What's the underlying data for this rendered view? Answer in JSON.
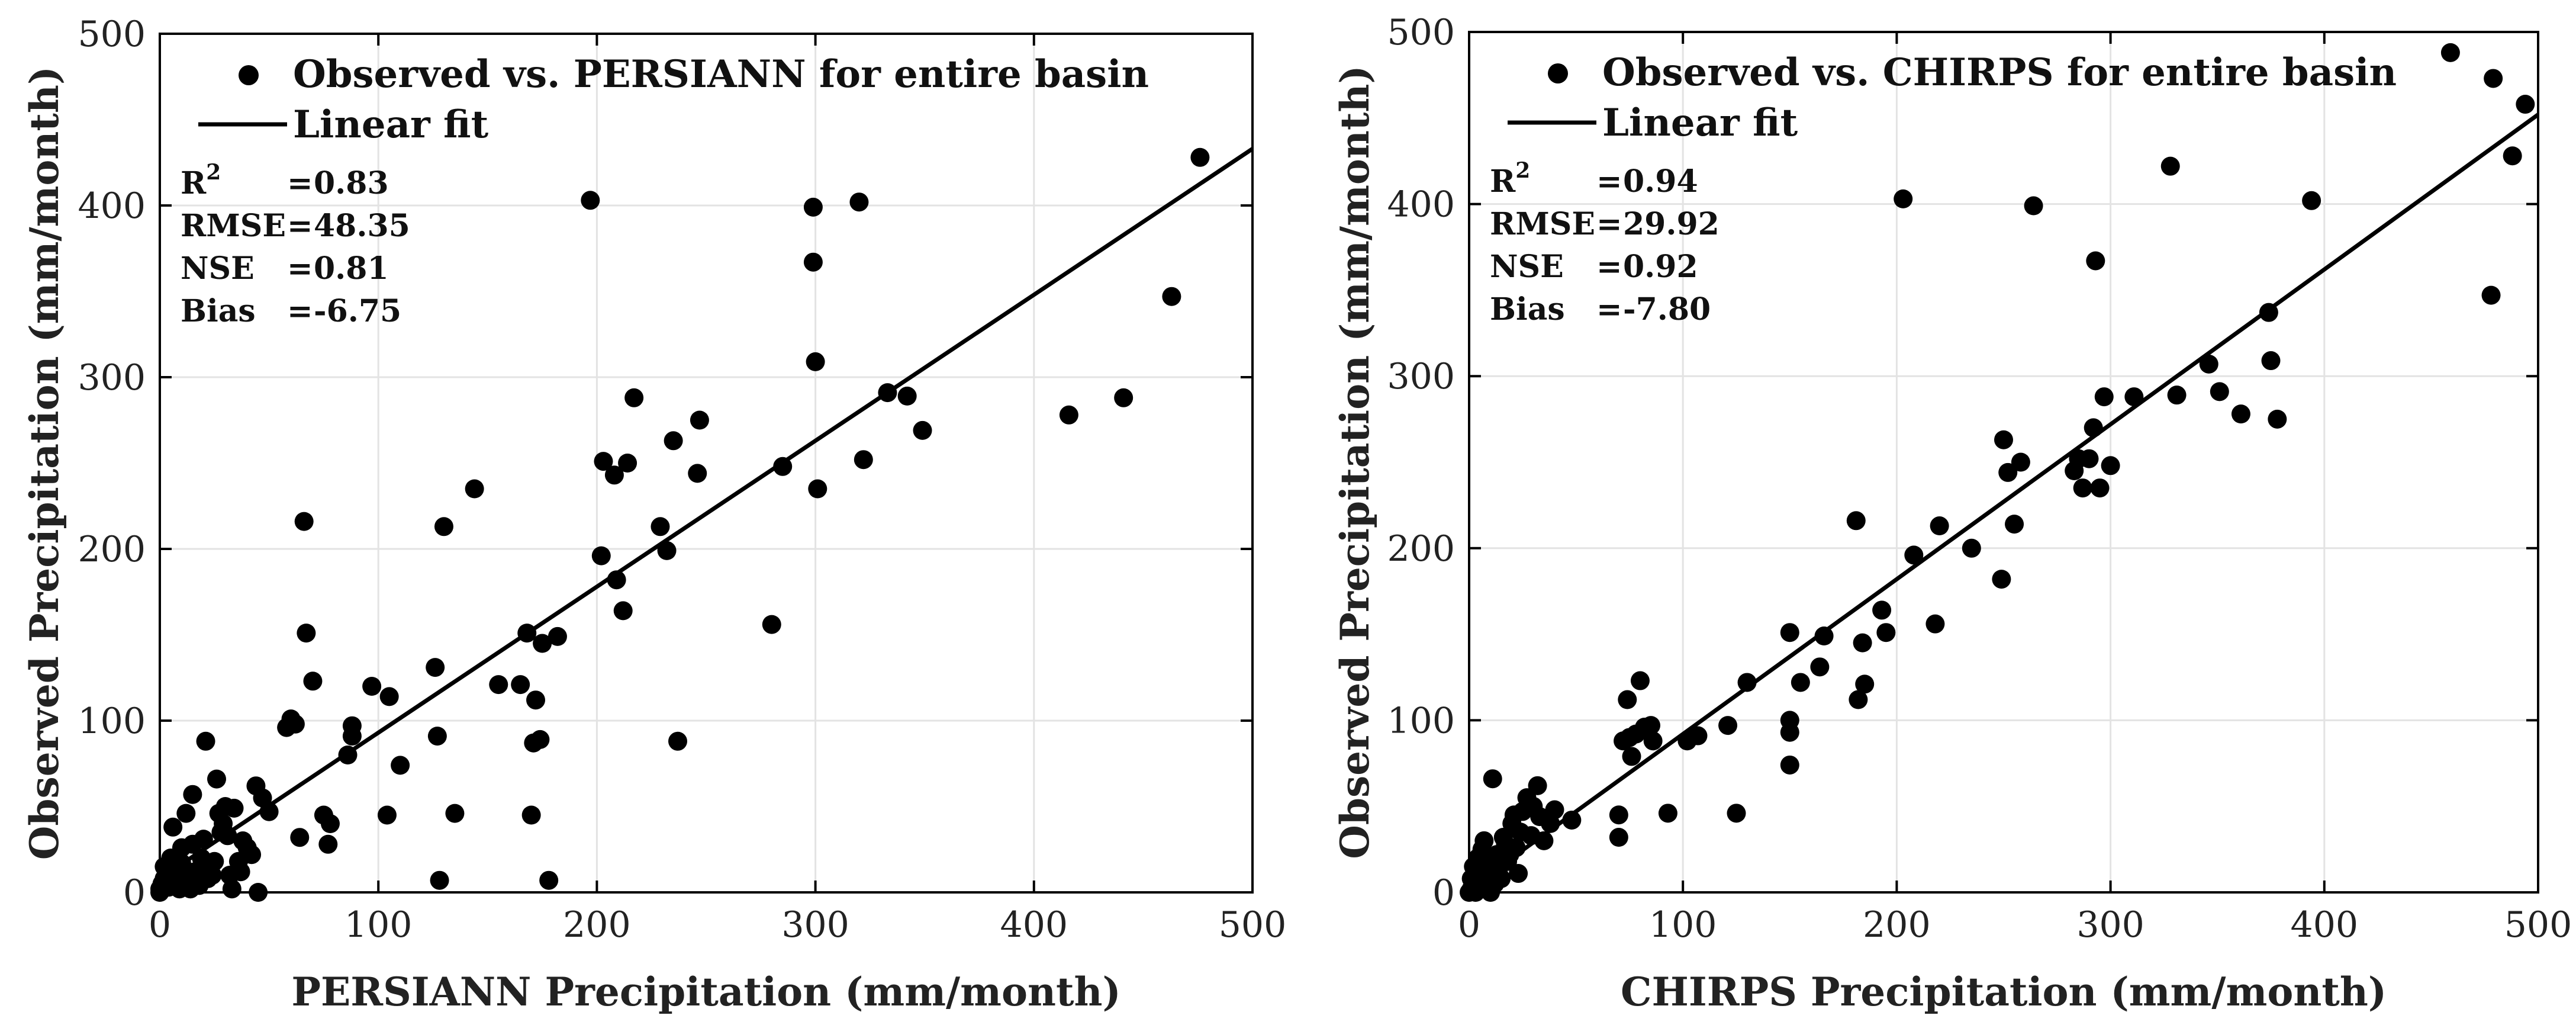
{
  "chart_data": [
    {
      "type": "scatter",
      "xlabel": "PERSIANN Precipitation (mm/month)",
      "ylabel": "Observed Precipitation (mm/month)",
      "xlim": [
        0,
        500
      ],
      "ylim": [
        0,
        500
      ],
      "xticks": [
        "0",
        "100",
        "200",
        "300",
        "400",
        "500"
      ],
      "yticks": [
        "0",
        "100",
        "200",
        "300",
        "400",
        "500"
      ],
      "grid": true,
      "legend": {
        "placement": "top-left",
        "entries": [
          "Observed vs. PERSIANN for entire basin",
          "Linear fit"
        ]
      },
      "stats": [
        {
          "label": "R",
          "sup": "2",
          "eq": "=",
          "value": "0.83"
        },
        {
          "label": "RMSE",
          "sup": "",
          "eq": "=",
          "value": "48.35"
        },
        {
          "label": "NSE",
          "sup": "",
          "eq": "=",
          "value": "0.81"
        },
        {
          "label": "Bias",
          "sup": "",
          "eq": "=",
          "value": "-6.75"
        }
      ],
      "fit": {
        "x": [
          0,
          500
        ],
        "y": [
          8,
          433
        ]
      },
      "points": [
        [
          0,
          0
        ],
        [
          0,
          2
        ],
        [
          1,
          5
        ],
        [
          2,
          8
        ],
        [
          2,
          15
        ],
        [
          3,
          12
        ],
        [
          4,
          3
        ],
        [
          5,
          10
        ],
        [
          5,
          20
        ],
        [
          6,
          38
        ],
        [
          7,
          6
        ],
        [
          8,
          14
        ],
        [
          9,
          2
        ],
        [
          10,
          17
        ],
        [
          10,
          26
        ],
        [
          12,
          8
        ],
        [
          12,
          46
        ],
        [
          13,
          9
        ],
        [
          14,
          2
        ],
        [
          15,
          57
        ],
        [
          15,
          28
        ],
        [
          16,
          12
        ],
        [
          17,
          5
        ],
        [
          18,
          4
        ],
        [
          19,
          20
        ],
        [
          20,
          31
        ],
        [
          21,
          88
        ],
        [
          22,
          8
        ],
        [
          23,
          14
        ],
        [
          24,
          10
        ],
        [
          25,
          18
        ],
        [
          26,
          66
        ],
        [
          27,
          46
        ],
        [
          28,
          35
        ],
        [
          29,
          40
        ],
        [
          30,
          50
        ],
        [
          31,
          33
        ],
        [
          32,
          10
        ],
        [
          33,
          2
        ],
        [
          34,
          49
        ],
        [
          36,
          18
        ],
        [
          37,
          12
        ],
        [
          38,
          30
        ],
        [
          40,
          26
        ],
        [
          42,
          22
        ],
        [
          44,
          62
        ],
        [
          45,
          0
        ],
        [
          47,
          55
        ],
        [
          50,
          47
        ],
        [
          58,
          96
        ],
        [
          60,
          101
        ],
        [
          62,
          98
        ],
        [
          64,
          32
        ],
        [
          66,
          216
        ],
        [
          67,
          151
        ],
        [
          70,
          123
        ],
        [
          75,
          45
        ],
        [
          77,
          28
        ],
        [
          78,
          40
        ],
        [
          86,
          80
        ],
        [
          88,
          97
        ],
        [
          88,
          91
        ],
        [
          97,
          120
        ],
        [
          104,
          45
        ],
        [
          105,
          114
        ],
        [
          110,
          74
        ],
        [
          126,
          131
        ],
        [
          127,
          91
        ],
        [
          128,
          7
        ],
        [
          130,
          213
        ],
        [
          135,
          46
        ],
        [
          144,
          235
        ],
        [
          155,
          121
        ],
        [
          165,
          121
        ],
        [
          168,
          151
        ],
        [
          170,
          45
        ],
        [
          171,
          87
        ],
        [
          172,
          112
        ],
        [
          174,
          89
        ],
        [
          175,
          145
        ],
        [
          178,
          7
        ],
        [
          182,
          149
        ],
        [
          197,
          403
        ],
        [
          202,
          196
        ],
        [
          203,
          251
        ],
        [
          208,
          243
        ],
        [
          209,
          182
        ],
        [
          212,
          164
        ],
        [
          214,
          250
        ],
        [
          217,
          288
        ],
        [
          229,
          213
        ],
        [
          232,
          199
        ],
        [
          235,
          263
        ],
        [
          237,
          88
        ],
        [
          246,
          244
        ],
        [
          247,
          275
        ],
        [
          280,
          156
        ],
        [
          285,
          248
        ],
        [
          299,
          399
        ],
        [
          299,
          367
        ],
        [
          300,
          309
        ],
        [
          301,
          235
        ],
        [
          322,
          252
        ],
        [
          320,
          402
        ],
        [
          333,
          291
        ],
        [
          342,
          289
        ],
        [
          349,
          269
        ],
        [
          416,
          278
        ],
        [
          441,
          288
        ],
        [
          463,
          347
        ],
        [
          476,
          428
        ]
      ]
    },
    {
      "type": "scatter",
      "xlabel": "CHIRPS Precipitation (mm/month)",
      "ylabel": "Observed Precipitation (mm/month)",
      "xlim": [
        0,
        500
      ],
      "ylim": [
        0,
        500
      ],
      "xticks": [
        "0",
        "100",
        "200",
        "300",
        "400",
        "500"
      ],
      "yticks": [
        "0",
        "100",
        "200",
        "300",
        "400",
        "500"
      ],
      "grid": true,
      "legend": {
        "placement": "top-left",
        "entries": [
          "Observed vs. CHIRPS for entire basin",
          "Linear fit"
        ]
      },
      "stats": [
        {
          "label": "R",
          "sup": "2",
          "eq": "=",
          "value": "0.94"
        },
        {
          "label": "RMSE",
          "sup": "",
          "eq": "=",
          "value": "29.92"
        },
        {
          "label": "NSE",
          "sup": "",
          "eq": "=",
          "value": "0.92"
        },
        {
          "label": "Bias",
          "sup": "",
          "eq": "=",
          "value": "-7.80"
        }
      ],
      "fit": {
        "x": [
          0,
          500
        ],
        "y": [
          2,
          452
        ]
      },
      "points": [
        [
          0,
          0
        ],
        [
          1,
          2
        ],
        [
          1,
          8
        ],
        [
          2,
          5
        ],
        [
          2,
          15
        ],
        [
          3,
          0
        ],
        [
          3,
          10
        ],
        [
          4,
          3
        ],
        [
          4,
          20
        ],
        [
          5,
          12
        ],
        [
          5,
          7
        ],
        [
          6,
          2
        ],
        [
          6,
          25
        ],
        [
          7,
          30
        ],
        [
          7,
          15
        ],
        [
          8,
          8
        ],
        [
          8,
          3
        ],
        [
          9,
          12
        ],
        [
          10,
          18
        ],
        [
          10,
          0
        ],
        [
          11,
          66
        ],
        [
          12,
          5
        ],
        [
          12,
          14
        ],
        [
          13,
          22
        ],
        [
          14,
          10
        ],
        [
          15,
          8
        ],
        [
          16,
          32
        ],
        [
          17,
          28
        ],
        [
          18,
          18
        ],
        [
          19,
          22
        ],
        [
          20,
          40
        ],
        [
          21,
          45
        ],
        [
          22,
          26
        ],
        [
          23,
          11
        ],
        [
          24,
          35
        ],
        [
          25,
          47
        ],
        [
          27,
          55
        ],
        [
          29,
          33
        ],
        [
          30,
          50
        ],
        [
          32,
          62
        ],
        [
          33,
          44
        ],
        [
          35,
          30
        ],
        [
          38,
          40
        ],
        [
          40,
          48
        ],
        [
          48,
          42
        ],
        [
          70,
          45
        ],
        [
          70,
          32
        ],
        [
          72,
          88
        ],
        [
          74,
          112
        ],
        [
          75,
          90
        ],
        [
          76,
          79
        ],
        [
          78,
          92
        ],
        [
          80,
          123
        ],
        [
          82,
          96
        ],
        [
          85,
          97
        ],
        [
          86,
          88
        ],
        [
          93,
          46
        ],
        [
          102,
          88
        ],
        [
          107,
          91
        ],
        [
          121,
          97
        ],
        [
          125,
          46
        ],
        [
          130,
          122
        ],
        [
          150,
          151
        ],
        [
          150,
          100
        ],
        [
          150,
          93
        ],
        [
          150,
          74
        ],
        [
          155,
          122
        ],
        [
          164,
          131
        ],
        [
          166,
          149
        ],
        [
          181,
          216
        ],
        [
          182,
          112
        ],
        [
          184,
          145
        ],
        [
          185,
          121
        ],
        [
          193,
          164
        ],
        [
          195,
          151
        ],
        [
          203,
          403
        ],
        [
          208,
          196
        ],
        [
          218,
          156
        ],
        [
          220,
          213
        ],
        [
          235,
          200
        ],
        [
          249,
          182
        ],
        [
          250,
          263
        ],
        [
          252,
          244
        ],
        [
          255,
          214
        ],
        [
          258,
          250
        ],
        [
          264,
          399
        ],
        [
          283,
          245
        ],
        [
          285,
          252
        ],
        [
          287,
          235
        ],
        [
          290,
          252
        ],
        [
          292,
          270
        ],
        [
          293,
          367
        ],
        [
          295,
          235
        ],
        [
          297,
          288
        ],
        [
          300,
          248
        ],
        [
          311,
          288
        ],
        [
          328,
          422
        ],
        [
          331,
          289
        ],
        [
          346,
          307
        ],
        [
          351,
          291
        ],
        [
          361,
          278
        ],
        [
          374,
          337
        ],
        [
          375,
          309
        ],
        [
          378,
          275
        ],
        [
          394,
          402
        ],
        [
          459,
          488
        ],
        [
          479,
          473
        ],
        [
          478,
          347
        ],
        [
          488,
          428
        ],
        [
          494,
          458
        ]
      ]
    }
  ]
}
